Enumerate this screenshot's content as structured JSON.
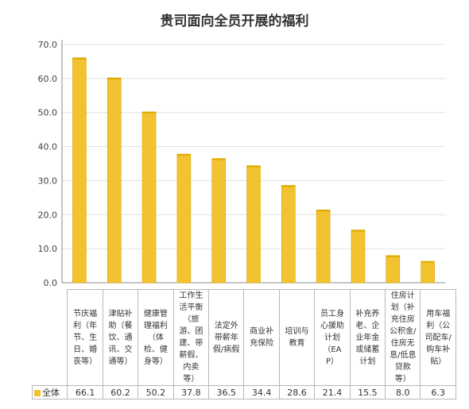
{
  "chart_data": {
    "type": "bar",
    "title": "贵司面向全员开展的福利",
    "categories": [
      "节庆福利（年节、生日、婚丧等）",
      "津贴补助（餐饮、通讯、交通等）",
      "健康管理福利（体检、健身等）",
      "工作生活平衡（旅游、团建、带薪假、内卖等）",
      "法定外带薪年假/病假",
      "商业补充保险",
      "培训与教育",
      "员工身心援助计划（EAP）",
      "补充养老、企业年金或储蓄计划",
      "住房计划（补充住房公积金/住房无息/低息贷款等）",
      "用车福利（公司配车/购车补贴）"
    ],
    "series": [
      {
        "name": "全体",
        "values": [
          66.1,
          60.2,
          50.2,
          37.8,
          36.5,
          34.4,
          28.6,
          21.4,
          15.5,
          8.0,
          6.3
        ]
      }
    ],
    "value_labels": [
      "66.1",
      "60.2",
      "50.2",
      "37.8",
      "36.5",
      "34.4",
      "28.6",
      "21.4",
      "15.5",
      "8.0",
      "6.3"
    ],
    "ylim": [
      0,
      70
    ],
    "yticks": [
      "0.0",
      "10.0",
      "20.0",
      "30.0",
      "40.0",
      "50.0",
      "60.0",
      "70.0"
    ],
    "grid": true,
    "legend": "bottom-left table",
    "bar_color": "#F2C230"
  }
}
